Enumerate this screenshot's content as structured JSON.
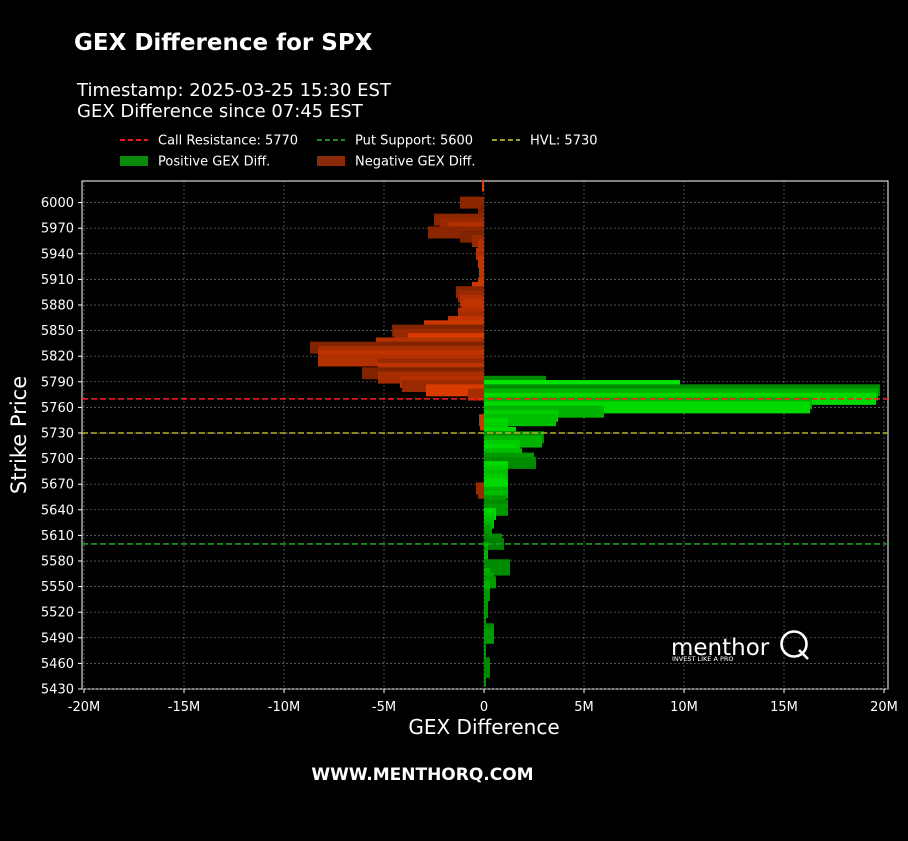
{
  "header": {
    "title": "GEX Difference for SPX",
    "timestamp": "Timestamp: 2025-03-25 15:30 EST",
    "since": "GEX Difference since 07:45 EST"
  },
  "footer": {
    "url": "WWW.MENTHORQ.COM"
  },
  "logo": {
    "name": "menthor",
    "letter": "Q",
    "tagline": "INVEST LIKE A PRO"
  },
  "colors": {
    "positive": "#00ff00",
    "negative": "#ff4500",
    "call_line": "#ff2020",
    "put_line": "#1e9e1e",
    "hvl_line": "#b5b52a"
  },
  "chart_data": {
    "type": "bar",
    "orientation": "horizontal",
    "xlabel": "GEX Difference",
    "ylabel": "Strike Price",
    "xlim": [
      -20000000,
      20000000
    ],
    "ylim": [
      5430,
      6020
    ],
    "x_ticks": [
      {
        "v": -20000000,
        "label": "-20M"
      },
      {
        "v": -15000000,
        "label": "-15M"
      },
      {
        "v": -10000000,
        "label": "-10M"
      },
      {
        "v": -5000000,
        "label": "-5M"
      },
      {
        "v": 0,
        "label": "0"
      },
      {
        "v": 5000000,
        "label": "5M"
      },
      {
        "v": 10000000,
        "label": "10M"
      },
      {
        "v": 15000000,
        "label": "15M"
      },
      {
        "v": 20000000,
        "label": "20M"
      }
    ],
    "y_ticks": [
      6000,
      5970,
      5940,
      5910,
      5880,
      5850,
      5820,
      5790,
      5760,
      5730,
      5700,
      5670,
      5640,
      5610,
      5580,
      5550,
      5520,
      5490,
      5460,
      5430
    ],
    "grid": true,
    "legend": {
      "placement": "top-left",
      "items": [
        {
          "label": "Call Resistance: 5770",
          "kind": "dash",
          "color": "#ff2020"
        },
        {
          "label": "Put Support: 5600",
          "kind": "dash",
          "color": "#1e9e1e"
        },
        {
          "label": "HVL: 5730",
          "kind": "dash",
          "color": "#b5b52a"
        },
        {
          "label": "Positive GEX Diff.",
          "kind": "patch",
          "color": "#0a8a0a"
        },
        {
          "label": "Negative GEX Diff.",
          "kind": "patch",
          "color": "#8a2a08"
        }
      ]
    },
    "reference_lines": [
      {
        "name": "Call Resistance",
        "value": 5770,
        "color": "#ff2020"
      },
      {
        "name": "Put Support",
        "value": 5600,
        "color": "#1e9e1e"
      },
      {
        "name": "HVL",
        "value": 5730,
        "color": "#b5b52a"
      }
    ],
    "series": [
      {
        "name": "Negative GEX Diff.",
        "bars": [
          {
            "strike": 6020,
            "value": -100000,
            "shade": 0.9
          },
          {
            "strike": 6000,
            "value": -1200000,
            "shade": 0.55
          },
          {
            "strike": 5990,
            "value": -300000,
            "shade": 0.5
          },
          {
            "strike": 5980,
            "value": -2500000,
            "shade": 0.55
          },
          {
            "strike": 5975,
            "value": -2200000,
            "shade": 0.6
          },
          {
            "strike": 5970,
            "value": -1800000,
            "shade": 0.7
          },
          {
            "strike": 5965,
            "value": -2800000,
            "shade": 0.55
          },
          {
            "strike": 5960,
            "value": -1200000,
            "shade": 0.5
          },
          {
            "strike": 5955,
            "value": -600000,
            "shade": 0.6
          },
          {
            "strike": 5950,
            "value": -300000,
            "shade": 0.7
          },
          {
            "strike": 5940,
            "value": -400000,
            "shade": 0.7
          },
          {
            "strike": 5930,
            "value": -300000,
            "shade": 0.75
          },
          {
            "strike": 5920,
            "value": -250000,
            "shade": 0.75
          },
          {
            "strike": 5910,
            "value": -250000,
            "shade": 0.75
          },
          {
            "strike": 5905,
            "value": -300000,
            "shade": 0.8
          },
          {
            "strike": 5900,
            "value": -600000,
            "shade": 0.8
          },
          {
            "strike": 5895,
            "value": -1400000,
            "shade": 0.55
          },
          {
            "strike": 5890,
            "value": -1300000,
            "shade": 0.6
          },
          {
            "strike": 5885,
            "value": -1200000,
            "shade": 0.7
          },
          {
            "strike": 5880,
            "value": -1000000,
            "shade": 0.75
          },
          {
            "strike": 5875,
            "value": -1100000,
            "shade": 0.75
          },
          {
            "strike": 5870,
            "value": -1300000,
            "shade": 0.7
          },
          {
            "strike": 5865,
            "value": -1300000,
            "shade": 0.65
          },
          {
            "strike": 5860,
            "value": -1800000,
            "shade": 0.75
          },
          {
            "strike": 5855,
            "value": -3000000,
            "shade": 0.8
          },
          {
            "strike": 5850,
            "value": -4600000,
            "shade": 0.5
          },
          {
            "strike": 5845,
            "value": -4500000,
            "shade": 0.6
          },
          {
            "strike": 5840,
            "value": -3800000,
            "shade": 0.85
          },
          {
            "strike": 5835,
            "value": -5400000,
            "shade": 0.7
          },
          {
            "strike": 5830,
            "value": -8700000,
            "shade": 0.5
          },
          {
            "strike": 5825,
            "value": -8300000,
            "shade": 0.65
          },
          {
            "strike": 5820,
            "value": -8300000,
            "shade": 0.75
          },
          {
            "strike": 5815,
            "value": -8300000,
            "shade": 0.7
          },
          {
            "strike": 5810,
            "value": -5300000,
            "shade": 0.6
          },
          {
            "strike": 5805,
            "value": -5300000,
            "shade": 0.75
          },
          {
            "strike": 5800,
            "value": -6100000,
            "shade": 0.5
          },
          {
            "strike": 5795,
            "value": -5300000,
            "shade": 0.65
          },
          {
            "strike": 5790,
            "value": -4200000,
            "shade": 0.7
          },
          {
            "strike": 5785,
            "value": -4100000,
            "shade": 0.6
          },
          {
            "strike": 5780,
            "value": -2900000,
            "shade": 0.85
          },
          {
            "strike": 5775,
            "value": -800000,
            "shade": 0.65
          },
          {
            "strike": 5745,
            "value": -250000,
            "shade": 0.8
          },
          {
            "strike": 5740,
            "value": -200000,
            "shade": 0.8
          },
          {
            "strike": 5665,
            "value": -400000,
            "shade": 0.6
          },
          {
            "strike": 5660,
            "value": -300000,
            "shade": 0.6
          }
        ]
      },
      {
        "name": "Positive GEX Diff.",
        "bars": [
          {
            "strike": 5790,
            "value": 3100000,
            "shade": 0.55
          },
          {
            "strike": 5785,
            "value": 9800000,
            "shade": 0.9
          },
          {
            "strike": 5780,
            "value": 19800000,
            "shade": 0.55
          },
          {
            "strike": 5775,
            "value": 19700000,
            "shade": 0.7
          },
          {
            "strike": 5770,
            "value": 19600000,
            "shade": 0.85
          },
          {
            "strike": 5765,
            "value": 16400000,
            "shade": 0.7
          },
          {
            "strike": 5760,
            "value": 16300000,
            "shade": 0.85
          },
          {
            "strike": 5755,
            "value": 6000000,
            "shade": 0.7
          },
          {
            "strike": 5750,
            "value": 3700000,
            "shade": 0.8
          },
          {
            "strike": 5745,
            "value": 3600000,
            "shade": 0.75
          },
          {
            "strike": 5740,
            "value": 1200000,
            "shade": 0.85
          },
          {
            "strike": 5735,
            "value": 1100000,
            "shade": 0.8
          },
          {
            "strike": 5730,
            "value": 1600000,
            "shade": 0.85
          },
          {
            "strike": 5725,
            "value": 3000000,
            "shade": 0.55
          },
          {
            "strike": 5720,
            "value": 2900000,
            "shade": 0.7
          },
          {
            "strike": 5715,
            "value": 1800000,
            "shade": 0.8
          },
          {
            "strike": 5710,
            "value": 1600000,
            "shade": 0.85
          },
          {
            "strike": 5705,
            "value": 1900000,
            "shade": 0.75
          },
          {
            "strike": 5700,
            "value": 2500000,
            "shade": 0.6
          },
          {
            "strike": 5695,
            "value": 2600000,
            "shade": 0.55
          },
          {
            "strike": 5690,
            "value": 1200000,
            "shade": 0.85
          },
          {
            "strike": 5685,
            "value": 1200000,
            "shade": 0.8
          },
          {
            "strike": 5680,
            "value": 1200000,
            "shade": 0.75
          },
          {
            "strike": 5675,
            "value": 1100000,
            "shade": 0.8
          },
          {
            "strike": 5670,
            "value": 1200000,
            "shade": 0.85
          },
          {
            "strike": 5665,
            "value": 800000,
            "shade": 0.85
          },
          {
            "strike": 5660,
            "value": 1200000,
            "shade": 0.7
          },
          {
            "strike": 5655,
            "value": 1100000,
            "shade": 0.75
          },
          {
            "strike": 5650,
            "value": 1100000,
            "shade": 0.6
          },
          {
            "strike": 5645,
            "value": 1200000,
            "shade": 0.55
          },
          {
            "strike": 5640,
            "value": 1200000,
            "shade": 0.6
          },
          {
            "strike": 5635,
            "value": 600000,
            "shade": 0.85
          },
          {
            "strike": 5630,
            "value": 500000,
            "shade": 0.8
          },
          {
            "strike": 5625,
            "value": 500000,
            "shade": 0.75
          },
          {
            "strike": 5620,
            "value": 400000,
            "shade": 0.7
          },
          {
            "strike": 5615,
            "value": 300000,
            "shade": 0.6
          },
          {
            "strike": 5610,
            "value": 400000,
            "shade": 0.6
          },
          {
            "strike": 5605,
            "value": 900000,
            "shade": 0.55
          },
          {
            "strike": 5600,
            "value": 1000000,
            "shade": 0.5
          },
          {
            "strike": 5595,
            "value": 200000,
            "shade": 0.7
          },
          {
            "strike": 5590,
            "value": 150000,
            "shade": 0.6
          },
          {
            "strike": 5585,
            "value": 200000,
            "shade": 0.7
          },
          {
            "strike": 5580,
            "value": 200000,
            "shade": 0.7
          },
          {
            "strike": 5575,
            "value": 1300000,
            "shade": 0.55
          },
          {
            "strike": 5570,
            "value": 1300000,
            "shade": 0.55
          },
          {
            "strike": 5565,
            "value": 300000,
            "shade": 0.7
          },
          {
            "strike": 5560,
            "value": 500000,
            "shade": 0.65
          },
          {
            "strike": 5555,
            "value": 600000,
            "shade": 0.6
          },
          {
            "strike": 5550,
            "value": 300000,
            "shade": 0.7
          },
          {
            "strike": 5540,
            "value": 300000,
            "shade": 0.6
          },
          {
            "strike": 5530,
            "value": 200000,
            "shade": 0.6
          },
          {
            "strike": 5520,
            "value": 200000,
            "shade": 0.6
          },
          {
            "strike": 5510,
            "value": 100000,
            "shade": 0.6
          },
          {
            "strike": 5500,
            "value": 500000,
            "shade": 0.55
          },
          {
            "strike": 5495,
            "value": 500000,
            "shade": 0.6
          },
          {
            "strike": 5490,
            "value": 500000,
            "shade": 0.6
          },
          {
            "strike": 5480,
            "value": 100000,
            "shade": 0.6
          },
          {
            "strike": 5470,
            "value": 100000,
            "shade": 0.6
          },
          {
            "strike": 5460,
            "value": 300000,
            "shade": 0.55
          },
          {
            "strike": 5450,
            "value": 300000,
            "shade": 0.55
          },
          {
            "strike": 5440,
            "value": 100000,
            "shade": 0.6
          }
        ]
      }
    ]
  }
}
